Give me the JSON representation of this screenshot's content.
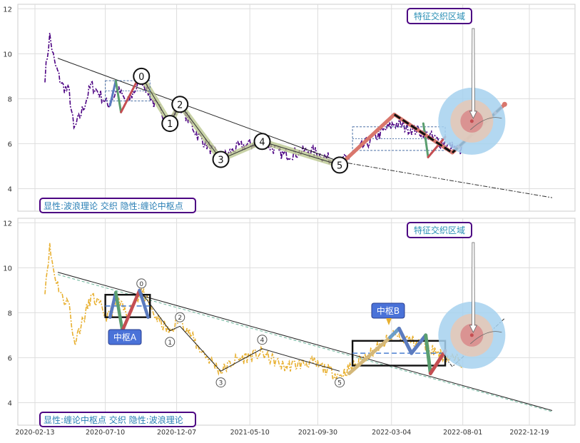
{
  "chart_data": [
    {
      "type": "line",
      "panel": "top",
      "yticks": [
        4,
        6,
        8,
        10,
        12
      ],
      "ylim": [
        3.0,
        12.2
      ],
      "grid": true,
      "caption": "显性:波浪理论 交织 隐性:缠论中枢点",
      "annotation": "特征交织区域",
      "price_color": "#4b0082",
      "wave_points": [
        {
          "label": "0",
          "date": "2020-09-24",
          "value": 9.0
        },
        {
          "label": "1",
          "date": "2020-11-23",
          "value": 6.9
        },
        {
          "label": "2",
          "date": "2020-12-14",
          "value": 7.75
        },
        {
          "label": "3",
          "date": "2021-03-10",
          "value": 5.3
        },
        {
          "label": "4",
          "date": "2021-06-05",
          "value": 6.1
        },
        {
          "label": "5",
          "date": "2021-11-15",
          "value": 5.05
        }
      ],
      "trend_line": [
        {
          "date": "2020-04-01",
          "value": 9.8
        },
        {
          "date": "2021-11-15",
          "value": 5.2
        }
      ],
      "projection_line": [
        {
          "date": "2021-11-15",
          "value": 5.2
        },
        {
          "date": "2023-02-05",
          "value": 3.6
        }
      ],
      "central_boxes": [
        {
          "x0": "2020-07-10",
          "x1": "2020-10-12",
          "y0": 7.9,
          "y1": 8.8
        },
        {
          "x0": "2021-12-12",
          "x1": "2022-06-25",
          "y0": 5.7,
          "y1": 6.75
        }
      ],
      "wave_path": [
        {
          "date": "2021-11-15",
          "value": 5.05
        },
        {
          "date": "2022-03-10",
          "value": 7.3
        },
        {
          "date": "2022-07-10",
          "value": 5.6
        },
        {
          "date": "2022-10-28",
          "value": 7.75
        }
      ]
    },
    {
      "type": "line",
      "panel": "bottom",
      "yticks": [
        4,
        6,
        8,
        10,
        12
      ],
      "ylim": [
        3.0,
        12.2
      ],
      "xticks": [
        "2020-02-13",
        "2020-07-10",
        "2020-12-07",
        "2021-05-10",
        "2021-09-30",
        "2022-03-04",
        "2022-08-01",
        "2022-12-19"
      ],
      "grid": true,
      "caption": "显性:缠论中枢点 交织 隐性:波浪理论",
      "annotation": "特征交织区域",
      "center_labels": [
        "中枢A",
        "中枢B"
      ],
      "price_color": "#e8b030",
      "wave_points": [
        {
          "label": "0",
          "date": "2020-09-24",
          "value": 9.3
        },
        {
          "label": "1",
          "date": "2020-11-23",
          "value": 6.7
        },
        {
          "label": "2",
          "date": "2020-12-14",
          "value": 7.8
        },
        {
          "label": "3",
          "date": "2021-03-10",
          "value": 4.9
        },
        {
          "label": "4",
          "date": "2021-06-05",
          "value": 6.8
        },
        {
          "label": "5",
          "date": "2021-11-15",
          "value": 4.9
        }
      ],
      "central_boxes": [
        {
          "x0": "2020-07-10",
          "x1": "2020-10-12",
          "y0": 7.8,
          "y1": 8.8
        },
        {
          "x0": "2021-12-12",
          "x1": "2022-06-25",
          "y0": 5.65,
          "y1": 6.75
        }
      ]
    }
  ]
}
